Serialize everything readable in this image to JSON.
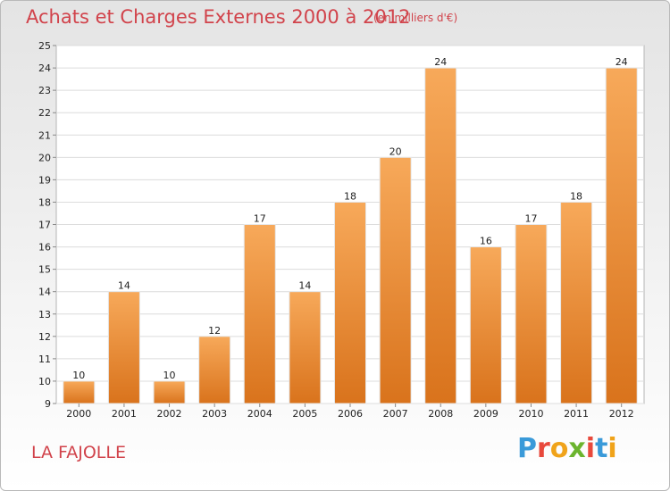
{
  "header": {
    "title": "Achats et Charges Externes 2000 à 2012",
    "subtitle": "(en milliers d'€)"
  },
  "footer": {
    "place": "LA FAJOLLE",
    "logo_text": "Proxiti",
    "logo_colors": [
      "#3a9ad9",
      "#e8493c",
      "#f0a31a",
      "#6bb42e",
      "#e8493c",
      "#3a9ad9",
      "#f0a31a"
    ]
  },
  "chart_data": {
    "type": "bar",
    "categories": [
      "2000",
      "2001",
      "2002",
      "2003",
      "2004",
      "2005",
      "2006",
      "2007",
      "2008",
      "2009",
      "2010",
      "2011",
      "2012"
    ],
    "values": [
      10,
      14,
      10,
      12,
      17,
      14,
      18,
      20,
      24,
      16,
      17,
      18,
      24
    ],
    "title": "Achats et Charges Externes 2000 à 2012",
    "xlabel": "",
    "ylabel": "",
    "ylim": [
      9,
      25
    ],
    "yticks": [
      9,
      10,
      11,
      12,
      13,
      14,
      15,
      16,
      17,
      18,
      19,
      20,
      21,
      22,
      23,
      24,
      25
    ],
    "grid": true,
    "bar_color": "#f28c2e",
    "bar_color_light": "#f7a95a",
    "bar_color_dark": "#d9731c",
    "data_labels": true
  }
}
